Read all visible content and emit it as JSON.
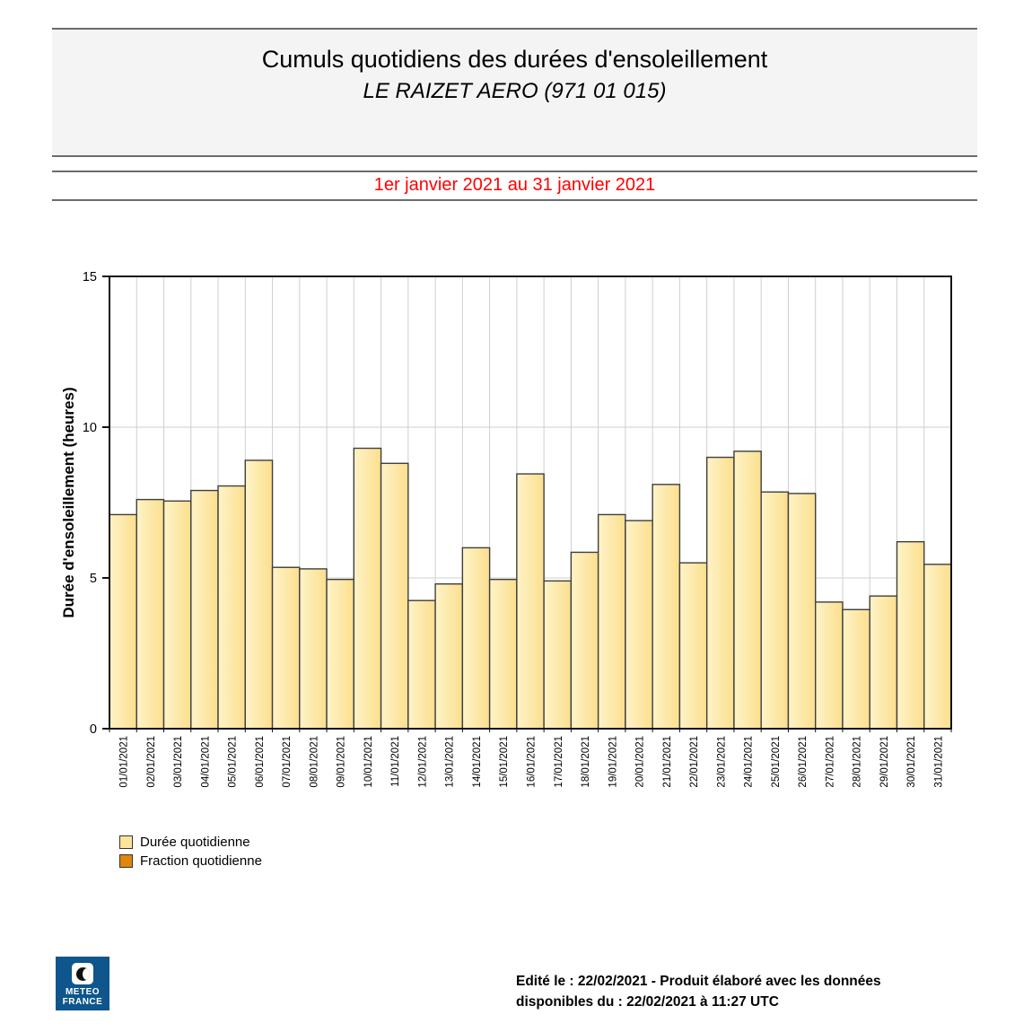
{
  "header": {
    "title": "Cumuls quotidiens des durées d'ensoleillement",
    "subtitle": "LE RAIZET AERO (971 01 015)"
  },
  "period": {
    "label": "1er janvier 2021 au 31 janvier 2021"
  },
  "chart_data": {
    "type": "bar",
    "title": "Cumuls quotidiens des durées d'ensoleillement",
    "xlabel": "",
    "ylabel": "Durée d'ensoleillement (heures)",
    "ylim": [
      0,
      15
    ],
    "yticks": [
      0,
      5,
      10,
      15
    ],
    "grid": true,
    "legend_position": "bottom-left",
    "categories": [
      "01/01/2021",
      "02/01/2021",
      "03/01/2021",
      "04/01/2021",
      "05/01/2021",
      "06/01/2021",
      "07/01/2021",
      "08/01/2021",
      "09/01/2021",
      "10/01/2021",
      "11/01/2021",
      "12/01/2021",
      "13/01/2021",
      "14/01/2021",
      "15/01/2021",
      "16/01/2021",
      "17/01/2021",
      "18/01/2021",
      "19/01/2021",
      "20/01/2021",
      "21/01/2021",
      "22/01/2021",
      "23/01/2021",
      "24/01/2021",
      "25/01/2021",
      "26/01/2021",
      "27/01/2021",
      "28/01/2021",
      "29/01/2021",
      "30/01/2021",
      "31/01/2021"
    ],
    "series": [
      {
        "name": "Durée quotidienne",
        "values": [
          7.1,
          7.6,
          7.55,
          7.9,
          8.05,
          8.9,
          5.35,
          5.3,
          4.95,
          9.3,
          8.8,
          4.25,
          4.8,
          6.0,
          4.95,
          8.45,
          4.9,
          5.85,
          7.1,
          6.9,
          8.1,
          5.5,
          9.0,
          9.2,
          7.85,
          7.8,
          4.2,
          3.95,
          4.4,
          6.2,
          5.45
        ]
      },
      {
        "name": "Fraction quotidienne",
        "values": []
      }
    ]
  },
  "legend": {
    "items": [
      {
        "label": "Durée quotidienne",
        "color": "#FBE49B"
      },
      {
        "label": "Fraction quotidienne",
        "color": "#E0860B"
      }
    ]
  },
  "footer": {
    "logo": {
      "line1": "METEO",
      "line2": "FRANCE"
    },
    "line1": "Edité le : 22/02/2021 - Produit élaboré avec les données",
    "line2": "disponibles du : 22/02/2021 à 11:27 UTC"
  },
  "colors": {
    "bar_fill_light": "#FEF3C8",
    "bar_fill_dark": "#FBDF8D",
    "bar_border": "#3F3F3F",
    "grid": "#CFCFCF",
    "plot_border": "#111111",
    "period_text": "#FF0000",
    "header_bg": "#F4F4F4",
    "rule": "#6B6B6B",
    "logo_bg": "#0E568C"
  }
}
